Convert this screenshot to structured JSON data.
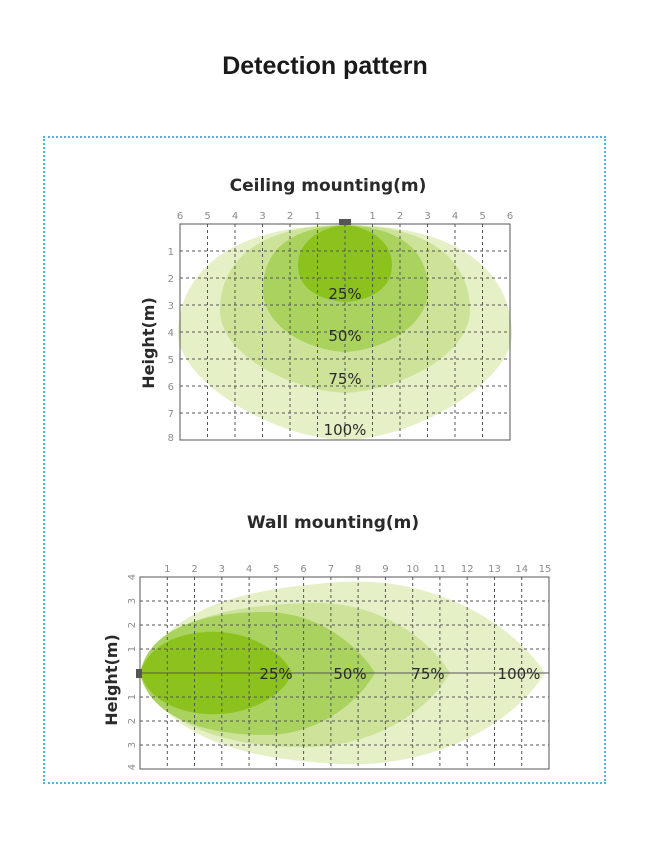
{
  "page_title": "Detection pattern",
  "colors": {
    "zone_100": "#e6f0c6",
    "zone_75": "#cde39a",
    "zone_50": "#a9d25e",
    "zone_25": "#8cc21e",
    "grid": "#555555",
    "frame_border": "#4fb3e0",
    "sensor": "#555555"
  },
  "ceiling": {
    "title": "Ceiling mounting(m)",
    "ylabel": "Height(m)",
    "x_ticks": [
      "6",
      "5",
      "4",
      "3",
      "2",
      "1",
      "1",
      "2",
      "3",
      "4",
      "5",
      "6"
    ],
    "y_ticks": [
      "1",
      "2",
      "3",
      "4",
      "5",
      "6",
      "7",
      "8"
    ],
    "zones": [
      "25%",
      "50%",
      "75%",
      "100%"
    ]
  },
  "wall": {
    "title": "Wall mounting(m)",
    "ylabel": "Height(m)",
    "x_ticks": [
      "1",
      "2",
      "3",
      "4",
      "5",
      "6",
      "7",
      "8",
      "9",
      "10",
      "11",
      "12",
      "13",
      "14",
      "15"
    ],
    "y_ticks_top": [
      "4",
      "3",
      "2",
      "1"
    ],
    "y_ticks_bottom": [
      "1",
      "2",
      "3",
      "4"
    ],
    "zones": [
      "25%",
      "50%",
      "75%",
      "100%"
    ]
  }
}
